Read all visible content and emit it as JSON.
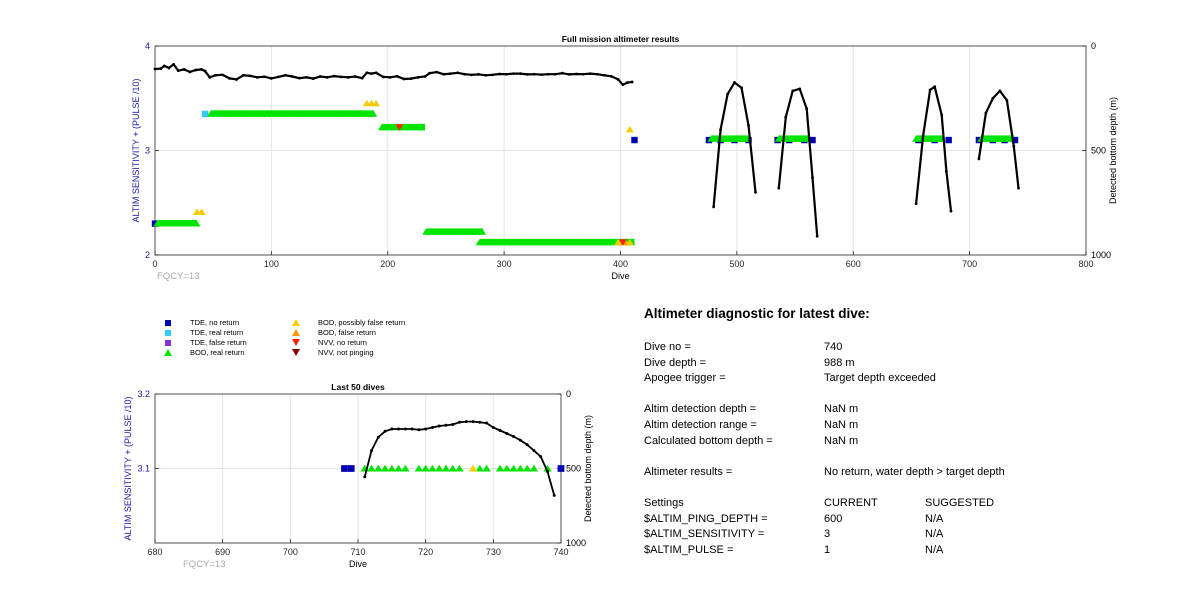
{
  "chart_data": [
    {
      "type": "scatter",
      "title": "Full mission altimeter results",
      "xlabel": "Dive",
      "ylabel": "ALTIM SENSITIVITY + (PULSE /10)",
      "y2label": "Detected bottom depth (m)",
      "xlim": [
        0,
        800
      ],
      "ylim": [
        2,
        4
      ],
      "y2lim": [
        0,
        1000
      ],
      "y2_reversed": true,
      "xticks": [
        "0",
        "100",
        "200",
        "300",
        "400",
        "500",
        "600",
        "700",
        "800"
      ],
      "yticks": [
        "2",
        "3",
        "4"
      ],
      "y2ticks": [
        "0",
        "500",
        "1000"
      ],
      "grid": true,
      "annotation": "FQCY=13",
      "series": [
        {
          "name": "TDE, no return",
          "marker": "square",
          "color": "#0000b0",
          "points": [
            [
              0,
              2.3
            ],
            [
              412,
              3.1
            ],
            [
              476,
              3.1
            ],
            [
              486,
              3.1
            ],
            [
              498,
              3.1
            ],
            [
              510,
              3.1
            ],
            [
              535,
              3.1
            ],
            [
              545,
              3.1
            ],
            [
              558,
              3.1
            ],
            [
              565,
              3.1
            ],
            [
              656,
              3.1
            ],
            [
              670,
              3.1
            ],
            [
              682,
              3.1
            ],
            [
              708,
              3.1
            ],
            [
              720,
              3.1
            ],
            [
              730,
              3.1
            ],
            [
              739,
              3.1
            ]
          ]
        },
        {
          "name": "TDE, real return",
          "marker": "square",
          "color": "#33ccff",
          "points": [
            [
              43,
              3.35
            ]
          ]
        },
        {
          "name": "BOD, real return",
          "marker": "triangle",
          "color": "#00e400",
          "segments": [
            [
              2,
              36,
              2.3
            ],
            [
              48,
              188,
              3.35
            ],
            [
              195,
              232,
              3.22
            ],
            [
              233,
              282,
              2.22
            ],
            [
              279,
              412,
              2.12
            ],
            [
              478,
              510,
              3.11
            ],
            [
              536,
              562,
              3.11
            ],
            [
              654,
              678,
              3.11
            ],
            [
              710,
              738,
              3.11
            ]
          ]
        },
        {
          "name": "BOD, possibly false return",
          "marker": "triangle",
          "color": "#f5cc00",
          "points": [
            [
              36,
              2.41
            ],
            [
              40,
              2.41
            ],
            [
              182,
              3.45
            ],
            [
              186,
              3.45
            ],
            [
              190,
              3.45
            ],
            [
              408,
              3.2
            ],
            [
              398,
              2.12
            ],
            [
              404,
              2.12
            ],
            [
              408,
              2.12
            ]
          ]
        },
        {
          "name": "BOD, false return",
          "marker": "triangle",
          "color": "#ff9900",
          "points": [
            [
              403,
              2.12
            ]
          ]
        },
        {
          "name": "NVV, no return",
          "marker": "triangle-down",
          "color": "#ff2200",
          "points": [
            [
              210,
              3.22
            ],
            [
              402,
              2.12
            ]
          ]
        }
      ],
      "bottom_depth_series": {
        "name": "Detected bottom depth",
        "axis": "y2",
        "points": [
          [
            0,
            110
          ],
          [
            5,
            108
          ],
          [
            8,
            95
          ],
          [
            12,
            105
          ],
          [
            16,
            88
          ],
          [
            20,
            118
          ],
          [
            25,
            112
          ],
          [
            30,
            124
          ],
          [
            35,
            115
          ],
          [
            40,
            112
          ],
          [
            43,
            120
          ],
          [
            47,
            150
          ],
          [
            52,
            140
          ],
          [
            58,
            138
          ],
          [
            64,
            155
          ],
          [
            70,
            160
          ],
          [
            76,
            140
          ],
          [
            82,
            143
          ],
          [
            88,
            150
          ],
          [
            94,
            147
          ],
          [
            100,
            155
          ],
          [
            106,
            148
          ],
          [
            112,
            140
          ],
          [
            118,
            146
          ],
          [
            124,
            154
          ],
          [
            130,
            150
          ],
          [
            136,
            156
          ],
          [
            142,
            146
          ],
          [
            148,
            150
          ],
          [
            154,
            144
          ],
          [
            160,
            148
          ],
          [
            166,
            150
          ],
          [
            172,
            146
          ],
          [
            178,
            154
          ],
          [
            182,
            128
          ],
          [
            186,
            132
          ],
          [
            190,
            128
          ],
          [
            196,
            148
          ],
          [
            202,
            150
          ],
          [
            208,
            145
          ],
          [
            214,
            158
          ],
          [
            220,
            156
          ],
          [
            226,
            150
          ],
          [
            232,
            146
          ],
          [
            236,
            130
          ],
          [
            242,
            125
          ],
          [
            248,
            135
          ],
          [
            254,
            132
          ],
          [
            260,
            128
          ],
          [
            266,
            135
          ],
          [
            272,
            138
          ],
          [
            278,
            136
          ],
          [
            284,
            140
          ],
          [
            290,
            138
          ],
          [
            296,
            134
          ],
          [
            302,
            135
          ],
          [
            308,
            132
          ],
          [
            314,
            132
          ],
          [
            320,
            136
          ],
          [
            326,
            135
          ],
          [
            332,
            137
          ],
          [
            338,
            135
          ],
          [
            344,
            135
          ],
          [
            350,
            130
          ],
          [
            356,
            136
          ],
          [
            362,
            134
          ],
          [
            368,
            135
          ],
          [
            374,
            132
          ],
          [
            380,
            135
          ],
          [
            386,
            140
          ],
          [
            392,
            145
          ],
          [
            398,
            160
          ],
          [
            402,
            185
          ],
          [
            406,
            175
          ],
          [
            410,
            172
          ]
        ],
        "profiles": [
          {
            "dives": [
              [
                480,
                770
              ],
              [
                486,
                400
              ],
              [
                492,
                230
              ],
              [
                498,
                175
              ],
              [
                504,
                200
              ],
              [
                510,
                380
              ],
              [
                516,
                700
              ]
            ]
          },
          {
            "dives": [
              [
                536,
                680
              ],
              [
                542,
                340
              ],
              [
                548,
                215
              ],
              [
                554,
                205
              ],
              [
                560,
                300
              ],
              [
                565,
                630
              ],
              [
                569,
                910
              ]
            ]
          },
          {
            "dives": [
              [
                654,
                755
              ],
              [
                660,
                430
              ],
              [
                666,
                210
              ],
              [
                670,
                195
              ],
              [
                676,
                330
              ],
              [
                680,
                600
              ],
              [
                684,
                790
              ]
            ]
          },
          {
            "dives": [
              [
                708,
                540
              ],
              [
                714,
                320
              ],
              [
                720,
                250
              ],
              [
                726,
                215
              ],
              [
                732,
                260
              ],
              [
                738,
                480
              ],
              [
                742,
                680
              ]
            ]
          }
        ]
      }
    },
    {
      "type": "scatter",
      "title": "Last 50 dives",
      "xlabel": "Dive",
      "ylabel": "ALTIM SENSITIVITY + (PULSE /10)",
      "y2label": "Detected bottom depth (m)",
      "xlim": [
        680,
        740
      ],
      "ylim": [
        3,
        3.2
      ],
      "y2lim": [
        0,
        1000
      ],
      "y2_reversed": true,
      "xticks": [
        "680",
        "690",
        "700",
        "710",
        "720",
        "730",
        "740"
      ],
      "yticks": [
        "3.1",
        "3.2"
      ],
      "y2ticks": [
        "0",
        "500",
        "1000"
      ],
      "grid": true,
      "annotation": "FQCY=13",
      "series": [
        {
          "name": "TDE, no return",
          "marker": "square",
          "color": "#0000b0",
          "points": [
            [
              708,
              3.1
            ],
            [
              709,
              3.1
            ],
            [
              740,
              3.1
            ]
          ]
        },
        {
          "name": "BOD, real return",
          "marker": "triangle",
          "color": "#00e400",
          "points": [
            [
              711,
              3.1
            ],
            [
              712,
              3.1
            ],
            [
              713,
              3.1
            ],
            [
              714,
              3.1
            ],
            [
              715,
              3.1
            ],
            [
              716,
              3.1
            ],
            [
              717,
              3.1
            ],
            [
              719,
              3.1
            ],
            [
              720,
              3.1
            ],
            [
              721,
              3.1
            ],
            [
              722,
              3.1
            ],
            [
              723,
              3.1
            ],
            [
              724,
              3.1
            ],
            [
              725,
              3.1
            ],
            [
              728,
              3.1
            ],
            [
              729,
              3.1
            ],
            [
              731,
              3.1
            ],
            [
              732,
              3.1
            ],
            [
              733,
              3.1
            ],
            [
              734,
              3.1
            ],
            [
              735,
              3.1
            ],
            [
              736,
              3.1
            ],
            [
              738,
              3.1
            ]
          ]
        },
        {
          "name": "BOD, possibly false return",
          "marker": "triangle",
          "color": "#f5cc00",
          "points": [
            [
              727,
              3.1
            ]
          ]
        }
      ],
      "bottom_depth_series": {
        "name": "Detected bottom depth",
        "axis": "y2",
        "points": [
          [
            711,
            555
          ],
          [
            712,
            380
          ],
          [
            713,
            290
          ],
          [
            714,
            250
          ],
          [
            715,
            235
          ],
          [
            716,
            235
          ],
          [
            717,
            235
          ],
          [
            718,
            235
          ],
          [
            719,
            240
          ],
          [
            720,
            235
          ],
          [
            721,
            225
          ],
          [
            722,
            215
          ],
          [
            723,
            210
          ],
          [
            724,
            205
          ],
          [
            725,
            190
          ],
          [
            726,
            185
          ],
          [
            727,
            185
          ],
          [
            728,
            190
          ],
          [
            729,
            195
          ],
          [
            730,
            225
          ],
          [
            731,
            245
          ],
          [
            732,
            265
          ],
          [
            733,
            285
          ],
          [
            734,
            310
          ],
          [
            735,
            340
          ],
          [
            736,
            380
          ],
          [
            737,
            420
          ],
          [
            738,
            520
          ],
          [
            739,
            680
          ]
        ]
      }
    }
  ],
  "legend": {
    "items": [
      {
        "label": "TDE, no return",
        "marker": "square",
        "color": "#0000b0"
      },
      {
        "label": "TDE, real return",
        "marker": "square",
        "color": "#33ccff"
      },
      {
        "label": "TDE, false return",
        "marker": "square",
        "color": "#8833cc"
      },
      {
        "label": "BOD, real return",
        "marker": "triangle",
        "color": "#00e400"
      },
      {
        "label": "BOD, possibly false return",
        "marker": "triangle",
        "color": "#f5cc00"
      },
      {
        "label": "BOD, false return",
        "marker": "triangle",
        "color": "#ff9900"
      },
      {
        "label": "NVV, no return",
        "marker": "triangle-down",
        "color": "#ff2200"
      },
      {
        "label": "NVV, not pinging",
        "marker": "triangle-down",
        "color": "#880000"
      }
    ]
  },
  "diagnostic": {
    "title": "Altimeter diagnostic for latest dive:",
    "dive_no_label": "Dive no =",
    "dive_no": "740",
    "dive_depth_label": "Dive depth =",
    "dive_depth": "988 m",
    "apogee_label": "Apogee trigger =",
    "apogee": "Target depth exceeded",
    "detect_depth_label": "Altim detection depth =",
    "detect_depth": "NaN m",
    "detect_range_label": "Altim detection range =",
    "detect_range": "NaN m",
    "calc_depth_label": "Calculated bottom depth =",
    "calc_depth": "NaN m",
    "results_label": "Altimeter results =",
    "results": "No return, water depth > target depth",
    "settings_label": "Settings",
    "current_label": "CURRENT",
    "suggested_label": "SUGGESTED",
    "rows": [
      {
        "name": "$ALTIM_PING_DEPTH =",
        "current": "600",
        "suggested": "N/A"
      },
      {
        "name": "$ALTIM_SENSITIVITY =",
        "current": "3",
        "suggested": "N/A"
      },
      {
        "name": "$ALTIM_PULSE =",
        "current": "1",
        "suggested": "N/A"
      }
    ]
  }
}
